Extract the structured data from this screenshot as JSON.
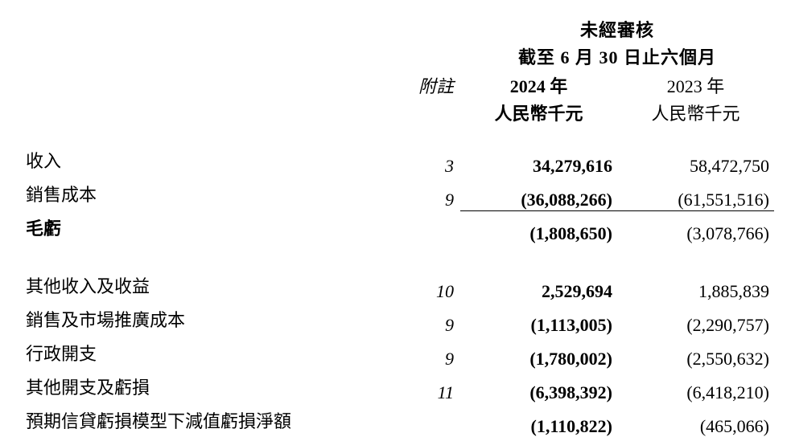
{
  "header": {
    "super": "未經審核",
    "period": "截至 6 月 30 日止六個月",
    "note_label": "附註",
    "year_current": "2024 年",
    "year_prior": "2023 年",
    "unit": "人民幣千元"
  },
  "rows": [
    {
      "item": "收入",
      "note": "3",
      "v1": "34,279,616",
      "v2": "58,472,750",
      "bold_item": false,
      "underline": false
    },
    {
      "item": "銷售成本",
      "note": "9",
      "v1": "(36,088,266)",
      "v2": "(61,551,516)",
      "bold_item": false,
      "underline": true
    },
    {
      "item": "毛虧",
      "note": "",
      "v1": "(1,808,650)",
      "v2": "(3,078,766)",
      "bold_item": true,
      "underline": false
    }
  ],
  "rows2": [
    {
      "item": "其他收入及收益",
      "note": "10",
      "v1": "2,529,694",
      "v2": "1,885,839",
      "bold_item": false,
      "underline": false
    },
    {
      "item": "銷售及市場推廣成本",
      "note": "9",
      "v1": "(1,113,005)",
      "v2": "(2,290,757)",
      "bold_item": false,
      "underline": false
    },
    {
      "item": "行政開支",
      "note": "9",
      "v1": "(1,780,002)",
      "v2": "(2,550,632)",
      "bold_item": false,
      "underline": false
    },
    {
      "item": "其他開支及虧損",
      "note": "11",
      "v1": "(6,398,392)",
      "v2": "(6,418,210)",
      "bold_item": false,
      "underline": false
    },
    {
      "item": "預期信貸虧損模型下減值虧損淨額",
      "note": "",
      "v1": "(1,110,822)",
      "v2": "(465,066)",
      "bold_item": false,
      "underline": false
    }
  ],
  "style": {
    "font_size_pt": 16,
    "text_color": "#000000",
    "background_color": "#ffffff",
    "rule_color": "#000000"
  }
}
